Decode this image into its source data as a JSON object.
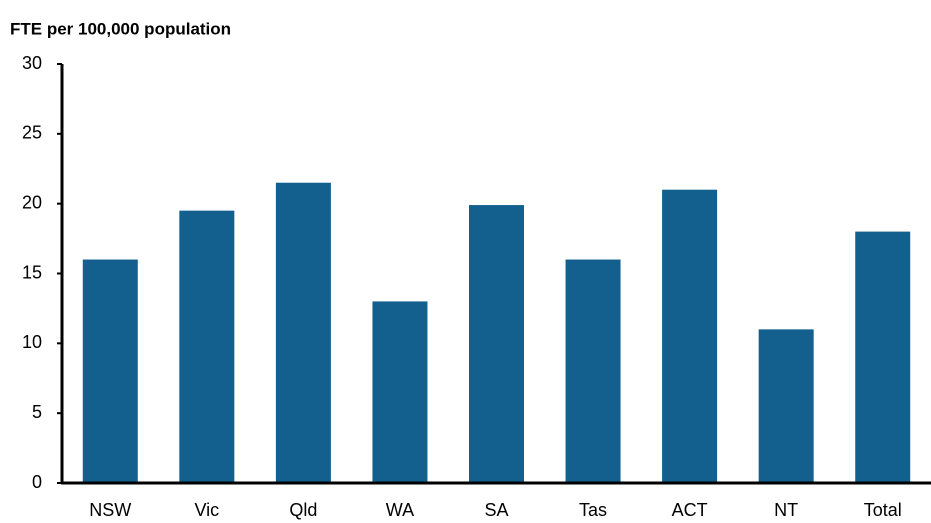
{
  "chart_data": {
    "type": "bar",
    "title": "FTE per 100,000 population",
    "categories": [
      "NSW",
      "Vic",
      "Qld",
      "WA",
      "SA",
      "Tas",
      "ACT",
      "NT",
      "Total"
    ],
    "values": [
      16,
      19.5,
      21.5,
      13,
      19.9,
      16,
      21,
      11,
      18
    ],
    "color": "#135f8e",
    "ylim": [
      0,
      30
    ],
    "yticks": [
      0,
      5,
      10,
      15,
      20,
      25,
      30
    ],
    "grid": false
  }
}
